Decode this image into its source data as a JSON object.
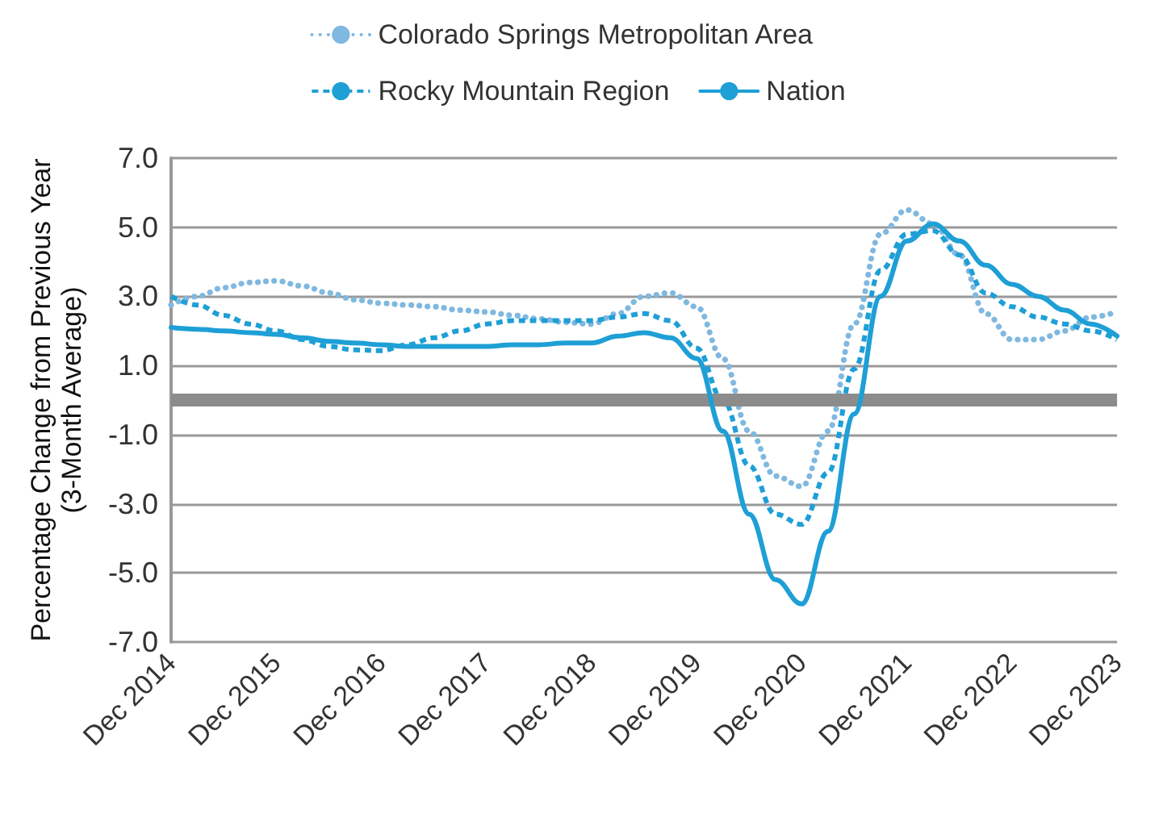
{
  "chart_data": {
    "type": "line",
    "ylabel": "Percentage Change from Previous Year\n(3-Month Average)",
    "categories": [
      "Dec 2014",
      null,
      null,
      null,
      "Dec 2015",
      null,
      null,
      null,
      "Dec 2016",
      null,
      null,
      null,
      "Dec 2017",
      null,
      null,
      null,
      "Dec 2018",
      null,
      null,
      null,
      "Dec 2019",
      null,
      null,
      null,
      "Dec 2020",
      null,
      null,
      null,
      "Dec 2021",
      null,
      null,
      null,
      "Dec 2022",
      null,
      null,
      null,
      "Dec 2023"
    ],
    "series": [
      {
        "name": "Colorado Springs Metropolitan Area",
        "color": "#7fb8e0",
        "line_style": "dotted",
        "values": [
          2.75,
          3.0,
          3.25,
          3.4,
          3.45,
          3.3,
          3.1,
          2.9,
          2.8,
          2.75,
          2.7,
          2.6,
          2.55,
          2.45,
          2.35,
          2.25,
          2.2,
          2.5,
          3.0,
          3.1,
          2.7,
          1.2,
          -0.9,
          -2.2,
          -2.5,
          -0.9,
          2.2,
          4.8,
          5.5,
          5.1,
          4.2,
          2.5,
          1.75,
          1.75,
          2.0,
          2.4,
          2.55
        ]
      },
      {
        "name": "Rocky Mountain Region",
        "color": "#1e9fd6",
        "line_style": "dashed",
        "values": [
          3.0,
          2.75,
          2.45,
          2.2,
          2.0,
          1.75,
          1.55,
          1.45,
          1.43,
          1.6,
          1.8,
          2.0,
          2.2,
          2.3,
          2.3,
          2.3,
          2.3,
          2.4,
          2.5,
          2.3,
          1.5,
          0.0,
          -1.9,
          -3.3,
          -3.6,
          -2.1,
          0.9,
          3.75,
          4.8,
          4.9,
          4.2,
          3.1,
          2.7,
          2.4,
          2.2,
          2.0,
          1.75
        ]
      },
      {
        "name": "Nation",
        "color": "#1e9fd6",
        "line_style": "solid",
        "values": [
          2.1,
          2.05,
          2.0,
          1.95,
          1.9,
          1.8,
          1.7,
          1.65,
          1.6,
          1.55,
          1.55,
          1.55,
          1.55,
          1.6,
          1.6,
          1.65,
          1.65,
          1.85,
          1.95,
          1.8,
          1.2,
          -0.9,
          -3.3,
          -5.2,
          -5.9,
          -3.8,
          -0.4,
          3.0,
          4.6,
          5.1,
          4.6,
          3.9,
          3.35,
          3.0,
          2.6,
          2.2,
          1.85
        ]
      }
    ],
    "ylim": [
      -7,
      7
    ],
    "yticks": [
      {
        "value": -7,
        "label": "-7.0"
      },
      {
        "value": -5,
        "label": "-5.0"
      },
      {
        "value": -3,
        "label": "-3.0"
      },
      {
        "value": -1,
        "label": "-1.0"
      },
      {
        "value": 1,
        "label": "1.0"
      },
      {
        "value": 3,
        "label": "3.0"
      },
      {
        "value": 5,
        "label": "5.0"
      },
      {
        "value": 7,
        "label": "7.0"
      }
    ],
    "ref_lines": [
      {
        "axis": "y",
        "value": 0,
        "color": "#8c8c8c"
      }
    ],
    "grid": "y",
    "legend": "top",
    "marker": "none"
  }
}
